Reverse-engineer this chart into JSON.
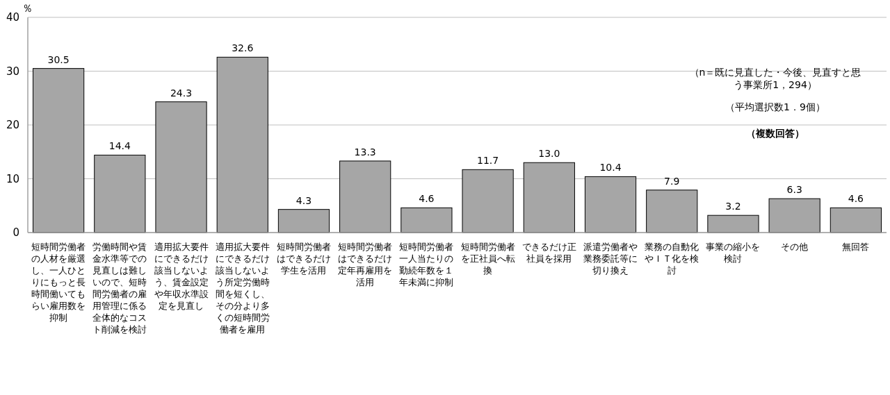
{
  "chart_data": {
    "type": "bar",
    "ylabel": "％",
    "categories": [
      "短時間労働者の人材を厳選し、一人ひとりにもっと長時間働いてもらい雇用数を抑制",
      "労働時間や賃金水準等での見直しは難しいので、短時間労働者の雇用管理に係る全体的なコスト削減を検討",
      "適用拡大要件にできるだけ該当しないよう、賃金設定や年収水準設定を見直し",
      "適用拡大要件にできるだけ該当しないよう所定労働時間を短くし、その分より多くの短時間労働者を雇用",
      "短時間労働者はできるだけ学生を活用",
      "短時間労働者はできるだけ定年再雇用を活用",
      "短時間労働者一人当たりの勤続年数を１年未満に抑制",
      "短時間労働者を正社員へ転換",
      "できるだけ正社員を採用",
      "派遣労働者や業務委託等に切り換え",
      "業務の自動化やＩＴ化を検討",
      "事業の縮小を検討",
      "その他",
      "無回答"
    ],
    "values": [
      30.5,
      14.4,
      24.3,
      32.6,
      4.3,
      13.3,
      4.6,
      11.7,
      13.0,
      10.4,
      7.9,
      3.2,
      6.3,
      4.6
    ],
    "value_labels": [
      "30.5",
      "14.4",
      "24.3",
      "32.6",
      "4.3",
      "13.3",
      "4.6",
      "11.7",
      "13.0",
      "10.4",
      "7.9",
      "3.2",
      "6.3",
      "4.6"
    ],
    "color": "#a6a6a6",
    "ylim": [
      0,
      40
    ],
    "yticks": [
      0,
      10,
      20,
      30,
      40
    ],
    "grid": "y",
    "annotations": [
      "（n＝既に見直した・今後、見直すと思う事業所1，294）",
      "（平均選択数1．9個）",
      "（複数回答）"
    ]
  }
}
